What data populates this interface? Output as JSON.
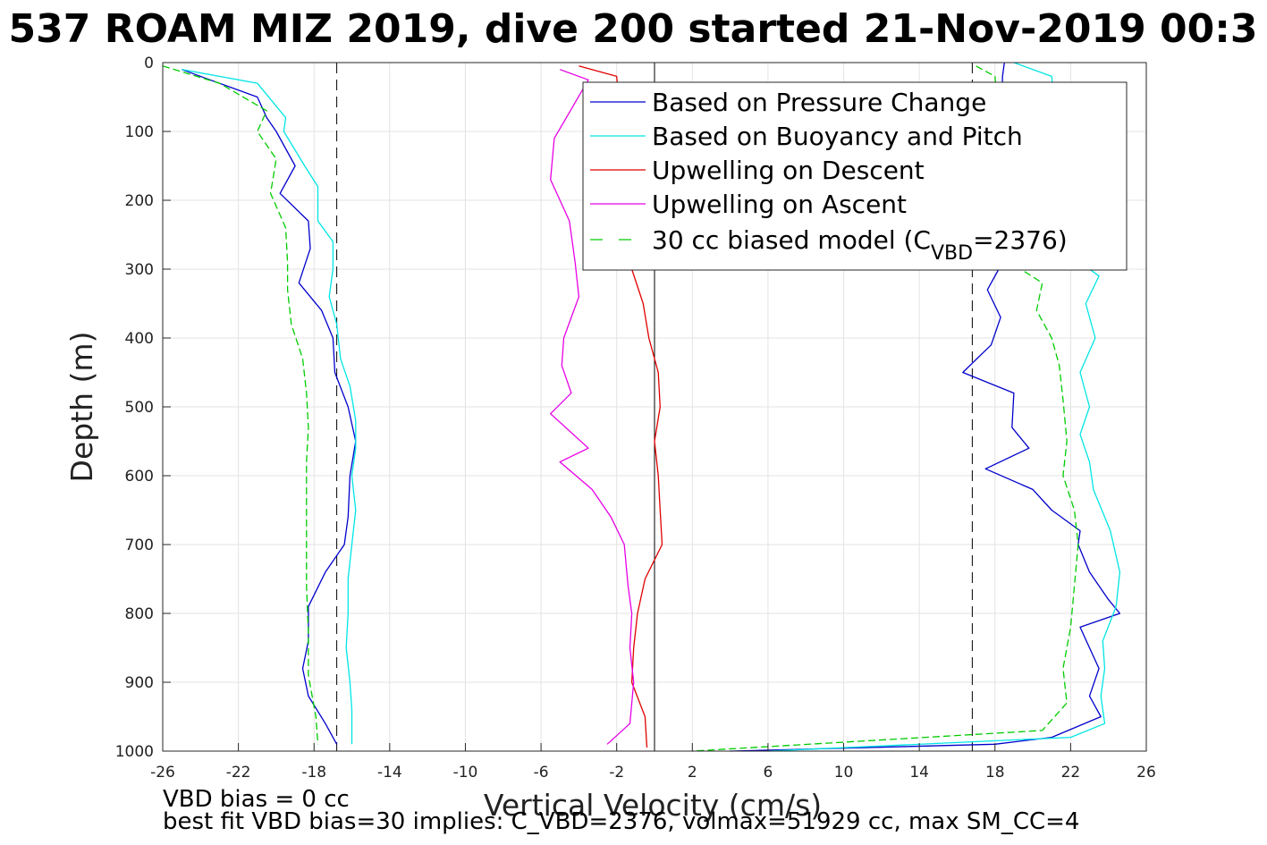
{
  "chart_data": {
    "type": "line",
    "title": "537 ROAM MIZ 2019, dive 200 started 21-Nov-2019 00:3",
    "xlabel": "Vertical Velocity (cm/s)",
    "ylabel": "Depth (m)",
    "xlim": [
      -26,
      26
    ],
    "ylim": [
      0,
      1000
    ],
    "y_reversed": true,
    "grid": true,
    "xticks": [
      "-26",
      "-22",
      "-18",
      "-14",
      "-10",
      "-6",
      "-2",
      "2",
      "6",
      "10",
      "14",
      "18",
      "22",
      "26"
    ],
    "yticks": [
      "0",
      "100",
      "200",
      "300",
      "400",
      "500",
      "600",
      "700",
      "800",
      "900",
      "1000"
    ],
    "reference_lines": [
      {
        "x": -16.8,
        "style": "dashed"
      },
      {
        "x": 0,
        "style": "solid"
      },
      {
        "x": 16.8,
        "style": "dashed"
      }
    ],
    "legend_position": "top-right",
    "legend": [
      {
        "name": "Based on Pressure Change",
        "color": "#0000cc",
        "dash": "solid"
      },
      {
        "name": "Based on Buoyancy and Pitch",
        "color": "#00e5e5",
        "dash": "solid"
      },
      {
        "name": "Upwelling on Descent",
        "color": "#e00000",
        "dash": "solid"
      },
      {
        "name": "Upwelling on Ascent",
        "color": "#e600e6",
        "dash": "solid"
      },
      {
        "name_prefix": "30 cc biased model (C",
        "name_sub": "VBD",
        "name_suffix": "=2376)",
        "color": "#00cc00",
        "dash": "dashed"
      }
    ],
    "series": [
      {
        "key": "pressure_descent",
        "color": "#0000cc",
        "dash": "solid",
        "points": [
          [
            -25,
            10
          ],
          [
            -23.5,
            25
          ],
          [
            -21,
            50
          ],
          [
            -20.5,
            80
          ],
          [
            -20,
            100
          ],
          [
            -19,
            150
          ],
          [
            -19.8,
            190
          ],
          [
            -18.3,
            230
          ],
          [
            -18.2,
            270
          ],
          [
            -18.8,
            320
          ],
          [
            -17.6,
            360
          ],
          [
            -17,
            400
          ],
          [
            -16.9,
            450
          ],
          [
            -16.2,
            500
          ],
          [
            -15.8,
            550
          ],
          [
            -16.1,
            600
          ],
          [
            -16.2,
            660
          ],
          [
            -16.4,
            700
          ],
          [
            -17.4,
            740
          ],
          [
            -18.3,
            790
          ],
          [
            -18.3,
            840
          ],
          [
            -18.6,
            880
          ],
          [
            -18.3,
            920
          ],
          [
            -17.4,
            960
          ],
          [
            -16.8,
            990
          ]
        ]
      },
      {
        "key": "pressure_ascent",
        "color": "#0000cc",
        "dash": "solid",
        "points": [
          [
            18.5,
            0
          ],
          [
            18.4,
            20
          ],
          [
            18.2,
            300
          ],
          [
            17.6,
            330
          ],
          [
            18.3,
            370
          ],
          [
            17.8,
            410
          ],
          [
            16.3,
            450
          ],
          [
            19,
            480
          ],
          [
            18.9,
            530
          ],
          [
            19.8,
            560
          ],
          [
            17.5,
            590
          ],
          [
            20,
            620
          ],
          [
            21,
            650
          ],
          [
            22.5,
            680
          ],
          [
            22.4,
            700
          ],
          [
            23,
            740
          ],
          [
            24,
            780
          ],
          [
            24.6,
            800
          ],
          [
            22.5,
            820
          ],
          [
            23,
            850
          ],
          [
            23.5,
            880
          ],
          [
            23,
            920
          ],
          [
            23.6,
            950
          ],
          [
            21,
            980
          ],
          [
            18,
            990
          ],
          [
            4,
            1000
          ]
        ]
      },
      {
        "key": "buoyancy_descent",
        "color": "#00e5e5",
        "dash": "solid",
        "points": [
          [
            -25,
            10
          ],
          [
            -21,
            30
          ],
          [
            -19.5,
            80
          ],
          [
            -19.6,
            100
          ],
          [
            -18.5,
            150
          ],
          [
            -17.8,
            180
          ],
          [
            -17.8,
            230
          ],
          [
            -17,
            260
          ],
          [
            -17,
            300
          ],
          [
            -17.2,
            340
          ],
          [
            -16.8,
            380
          ],
          [
            -16.6,
            430
          ],
          [
            -16.1,
            470
          ],
          [
            -15.8,
            520
          ],
          [
            -15.8,
            560
          ],
          [
            -16,
            600
          ],
          [
            -15.8,
            650
          ],
          [
            -16,
            700
          ],
          [
            -16.2,
            750
          ],
          [
            -16.2,
            800
          ],
          [
            -16.3,
            850
          ],
          [
            -16.1,
            900
          ],
          [
            -16,
            940
          ],
          [
            -16,
            990
          ]
        ]
      },
      {
        "key": "buoyancy_ascent",
        "color": "#00e5e5",
        "dash": "solid",
        "points": [
          [
            19,
            0
          ],
          [
            21,
            20
          ],
          [
            22,
            280
          ],
          [
            23.5,
            310
          ],
          [
            22.8,
            350
          ],
          [
            23.3,
            400
          ],
          [
            22.5,
            450
          ],
          [
            23,
            500
          ],
          [
            22.5,
            540
          ],
          [
            23,
            580
          ],
          [
            23.2,
            620
          ],
          [
            24.1,
            680
          ],
          [
            24.6,
            740
          ],
          [
            24.4,
            790
          ],
          [
            23.7,
            840
          ],
          [
            23.8,
            880
          ],
          [
            23.6,
            920
          ],
          [
            23.8,
            960
          ],
          [
            22,
            980
          ],
          [
            6,
            1000
          ]
        ]
      },
      {
        "key": "upwelling_descent",
        "color": "#e00000",
        "dash": "solid",
        "points": [
          [
            -4,
            5
          ],
          [
            -2,
            20
          ],
          [
            -1.2,
            300
          ],
          [
            -0.6,
            350
          ],
          [
            -0.3,
            400
          ],
          [
            0.2,
            450
          ],
          [
            0.3,
            500
          ],
          [
            0,
            550
          ],
          [
            0.2,
            600
          ],
          [
            0.3,
            650
          ],
          [
            0.4,
            700
          ],
          [
            -0.5,
            750
          ],
          [
            -0.9,
            800
          ],
          [
            -1.1,
            850
          ],
          [
            -1.2,
            900
          ],
          [
            -0.5,
            950
          ],
          [
            -0.4,
            995
          ]
        ]
      },
      {
        "key": "upwelling_ascent",
        "color": "#e600e6",
        "dash": "solid",
        "points": [
          [
            -5,
            10
          ],
          [
            -3.5,
            25
          ],
          [
            -5.3,
            110
          ],
          [
            -5.5,
            170
          ],
          [
            -4.5,
            230
          ],
          [
            -4.2,
            290
          ],
          [
            -4,
            340
          ],
          [
            -4.8,
            400
          ],
          [
            -4.9,
            440
          ],
          [
            -4.4,
            480
          ],
          [
            -5.5,
            510
          ],
          [
            -3.5,
            560
          ],
          [
            -5,
            580
          ],
          [
            -3.3,
            620
          ],
          [
            -2.3,
            660
          ],
          [
            -1.6,
            700
          ],
          [
            -1.4,
            760
          ],
          [
            -1.2,
            800
          ],
          [
            -1.3,
            850
          ],
          [
            -1.1,
            900
          ],
          [
            -1.3,
            960
          ],
          [
            -2.5,
            990
          ]
        ]
      },
      {
        "key": "model_descent",
        "color": "#00cc00",
        "dash": "dashed",
        "points": [
          [
            -26,
            5
          ],
          [
            -23,
            30
          ],
          [
            -20.5,
            70
          ],
          [
            -21,
            100
          ],
          [
            -20,
            140
          ],
          [
            -20.3,
            190
          ],
          [
            -19.5,
            240
          ],
          [
            -19.4,
            290
          ],
          [
            -19.4,
            330
          ],
          [
            -19.2,
            380
          ],
          [
            -18.6,
            430
          ],
          [
            -18.4,
            480
          ],
          [
            -18.3,
            530
          ],
          [
            -18.4,
            580
          ],
          [
            -18.4,
            630
          ],
          [
            -18.4,
            700
          ],
          [
            -18.4,
            760
          ],
          [
            -18.3,
            830
          ],
          [
            -18.3,
            890
          ],
          [
            -17.9,
            950
          ],
          [
            -17.8,
            990
          ]
        ]
      },
      {
        "key": "model_ascent",
        "color": "#00cc00",
        "dash": "dashed",
        "points": [
          [
            17,
            5
          ],
          [
            18,
            20
          ],
          [
            18.8,
            290
          ],
          [
            20.5,
            320
          ],
          [
            20.2,
            360
          ],
          [
            21,
            400
          ],
          [
            21.4,
            440
          ],
          [
            21.6,
            490
          ],
          [
            21.8,
            550
          ],
          [
            21.6,
            600
          ],
          [
            22.2,
            650
          ],
          [
            22.4,
            700
          ],
          [
            22.2,
            760
          ],
          [
            22,
            820
          ],
          [
            21.6,
            880
          ],
          [
            21.8,
            930
          ],
          [
            20.5,
            970
          ],
          [
            2,
            1000
          ]
        ]
      }
    ]
  },
  "footer": {
    "line1": "VBD bias = 0 cc",
    "line2": "best fit VBD bias=30 implies: C_VBD=2376, volmax=51929 cc, max SM_CC=4"
  }
}
